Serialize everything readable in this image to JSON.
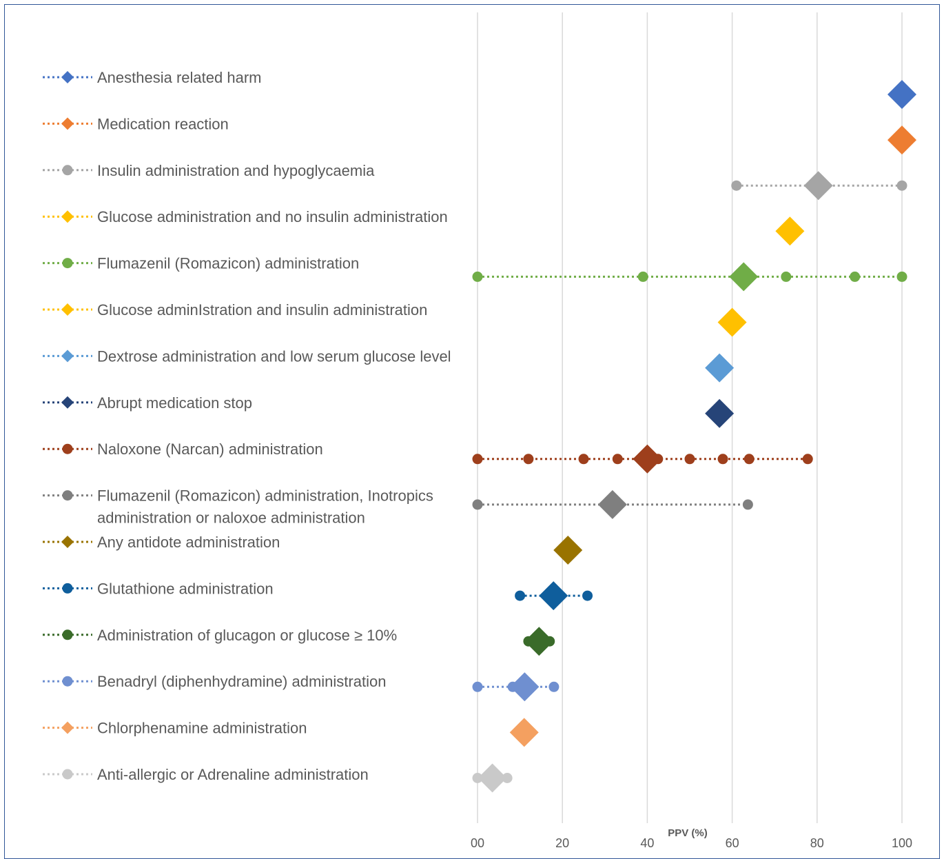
{
  "chart_data": {
    "type": "scatter",
    "xlabel": "PPV (%)",
    "xlim": [
      0,
      100
    ],
    "x_ticks": [
      0,
      20,
      40,
      60,
      80,
      100
    ],
    "x_tick_labels": [
      "00",
      "20",
      "40",
      "60",
      "80",
      "100"
    ],
    "grid": "vertical",
    "legend_position": "left",
    "series": [
      {
        "name": "Anesthesia related harm",
        "marker": "diamond",
        "color": "#4472c4",
        "points": [
          100
        ],
        "summary": 100
      },
      {
        "name": "Medication reaction",
        "marker": "diamond",
        "color": "#ed7d31",
        "points": [
          100
        ],
        "summary": 100
      },
      {
        "name": "Insulin administration and hypoglycaemia",
        "marker": "circle",
        "color": "#a5a5a5",
        "points": [
          61,
          100
        ],
        "summary": 80.3
      },
      {
        "name": "Glucose administration and no insulin administration",
        "marker": "diamond",
        "color": "#ffc000",
        "points": [
          73.6
        ],
        "summary": 73.6
      },
      {
        "name": "Flumazenil (Romazicon) administration",
        "marker": "circle",
        "color": "#70ad47",
        "points": [
          0,
          39,
          72.7,
          88.9,
          100
        ],
        "summary": 62.7
      },
      {
        "name": "Glucose adminIstration and insulin administration",
        "marker": "diamond",
        "color": "#ffc000",
        "points": [
          60
        ],
        "summary": 60
      },
      {
        "name": "Dextrose administration and low serum glucose level",
        "marker": "diamond",
        "color": "#5b9bd5",
        "points": [
          57
        ],
        "summary": 57
      },
      {
        "name": "Abrupt medication stop",
        "marker": "diamond",
        "color": "#264478",
        "points": [
          57
        ],
        "summary": 57
      },
      {
        "name": "Naloxone (Narcan) administration",
        "marker": "circle",
        "color": "#9e3f1c",
        "points": [
          0,
          12,
          25,
          33,
          42.5,
          50,
          57.8,
          64,
          77.8
        ],
        "summary": 40
      },
      {
        "name": "Flumazenil (Romazicon) administration, Inotropics administration or naloxoe administration",
        "marker": "circle",
        "color": "#7f7f7f",
        "points": [
          0,
          63.7
        ],
        "summary": 31.8
      },
      {
        "name": "Any antidote administration",
        "marker": "diamond",
        "color": "#997300",
        "points": [
          21.3
        ],
        "summary": 21.3
      },
      {
        "name": "Glutathione administration",
        "marker": "circle",
        "color": "#0f5e9c",
        "points": [
          10,
          25.9
        ],
        "summary": 17.9
      },
      {
        "name": "Administration of glucagon or glucose ≥ 10%",
        "marker": "circle",
        "color": "#3a6b2a",
        "points": [
          12,
          17
        ],
        "summary": 14.5
      },
      {
        "name": "Benadryl (diphenhydramine) administration",
        "marker": "circle",
        "color": "#6f8fd0",
        "points": [
          0,
          8.3,
          18
        ],
        "summary": 11.1
      },
      {
        "name": "Chlorphenamine administration",
        "marker": "diamond",
        "color": "#f4a060",
        "points": [
          11
        ],
        "summary": 11
      },
      {
        "name": "Anti-allergic or Adrenaline administration",
        "marker": "circle",
        "color": "#c9c9c9",
        "points": [
          0,
          7
        ],
        "summary": 3.5
      }
    ]
  }
}
